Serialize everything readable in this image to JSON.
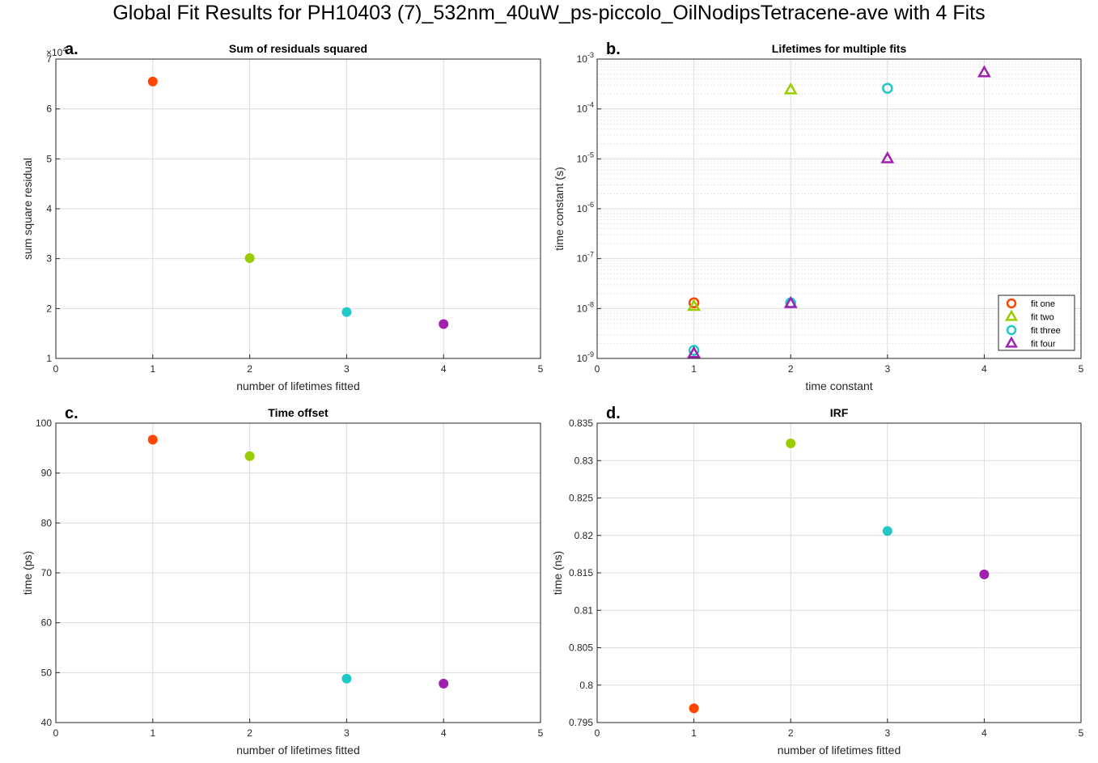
{
  "figure": {
    "title": "Global Fit Results for PH10403 (7)_532nm_40uW_ps-piccolo_OilNodipsTetracene-ave with 4 Fits"
  },
  "colors": {
    "fit_one": "#ff4500",
    "fit_two": "#9acd00",
    "fit_three": "#20c8c8",
    "fit_four": "#a020b0"
  },
  "chart_data": [
    {
      "id": "a",
      "type": "scatter",
      "panel_letter": "a.",
      "title": "Sum of residuals squared",
      "xlabel": "number of lifetimes fitted",
      "ylabel": "sum square residual",
      "exponent_label": "×10",
      "exponent_power": "4",
      "xlim": [
        0,
        5
      ],
      "ylim": [
        1,
        7
      ],
      "xticks": [
        "0",
        "1",
        "2",
        "3",
        "4",
        "5"
      ],
      "yticks": [
        "1",
        "2",
        "3",
        "4",
        "5",
        "6",
        "7"
      ],
      "x": [
        1,
        2,
        3,
        4
      ],
      "y": [
        6.55,
        3.01,
        1.93,
        1.69
      ],
      "marker_colors": [
        "#ff4500",
        "#9acd00",
        "#20c8c8",
        "#a020b0"
      ]
    },
    {
      "id": "b",
      "type": "scatter",
      "panel_letter": "b.",
      "title": "Lifetimes for multiple fits",
      "xlabel": "time constant",
      "ylabel": "time constant (s)",
      "yscale": "log",
      "xlim": [
        0,
        5
      ],
      "ylim": [
        1e-09,
        0.001
      ],
      "xticks": [
        "0",
        "1",
        "2",
        "3",
        "4",
        "5"
      ],
      "yticks": [
        {
          "base": "10",
          "exp": "-9"
        },
        {
          "base": "10",
          "exp": "-8"
        },
        {
          "base": "10",
          "exp": "-7"
        },
        {
          "base": "10",
          "exp": "-6"
        },
        {
          "base": "10",
          "exp": "-5"
        },
        {
          "base": "10",
          "exp": "-4"
        },
        {
          "base": "10",
          "exp": "-3"
        }
      ],
      "legend_position": "bottom-right",
      "series": [
        {
          "name": "fit one",
          "marker": "circle",
          "color": "#ff4500",
          "x": [
            1
          ],
          "y": [
            1.3e-08
          ]
        },
        {
          "name": "fit two",
          "marker": "triangle",
          "color": "#9acd00",
          "x": [
            1,
            2
          ],
          "y": [
            1.1e-08,
            0.00024
          ]
        },
        {
          "name": "fit three",
          "marker": "circle",
          "color": "#20c8c8",
          "x": [
            1,
            2,
            3
          ],
          "y": [
            1.45e-09,
            1.3e-08,
            0.00026
          ]
        },
        {
          "name": "fit four",
          "marker": "triangle",
          "color": "#a020b0",
          "x": [
            1,
            2,
            3,
            4
          ],
          "y": [
            1.25e-09,
            1.25e-08,
            1e-05,
            0.00053
          ]
        }
      ]
    },
    {
      "id": "c",
      "type": "scatter",
      "panel_letter": "c.",
      "title": "Time offset",
      "xlabel": "number of lifetimes fitted",
      "ylabel": "time (ps)",
      "xlim": [
        0,
        5
      ],
      "ylim": [
        40,
        100
      ],
      "xticks": [
        "0",
        "1",
        "2",
        "3",
        "4",
        "5"
      ],
      "yticks": [
        "40",
        "50",
        "60",
        "70",
        "80",
        "90",
        "100"
      ],
      "x": [
        1,
        2,
        3,
        4
      ],
      "y": [
        96.7,
        93.4,
        48.8,
        47.8
      ],
      "marker_colors": [
        "#ff4500",
        "#9acd00",
        "#20c8c8",
        "#a020b0"
      ]
    },
    {
      "id": "d",
      "type": "scatter",
      "panel_letter": "d.",
      "title": "IRF",
      "xlabel": "number of lifetimes fitted",
      "ylabel": "time (ns)",
      "xlim": [
        0,
        5
      ],
      "ylim": [
        0.795,
        0.835
      ],
      "xticks": [
        "0",
        "1",
        "2",
        "3",
        "4",
        "5"
      ],
      "yticks": [
        "0.795",
        "0.8",
        "0.805",
        "0.81",
        "0.815",
        "0.82",
        "0.825",
        "0.83",
        "0.835"
      ],
      "x": [
        1,
        2,
        3,
        4
      ],
      "y": [
        0.7969,
        0.8323,
        0.8206,
        0.8148
      ],
      "marker_colors": [
        "#ff4500",
        "#9acd00",
        "#20c8c8",
        "#a020b0"
      ]
    }
  ]
}
